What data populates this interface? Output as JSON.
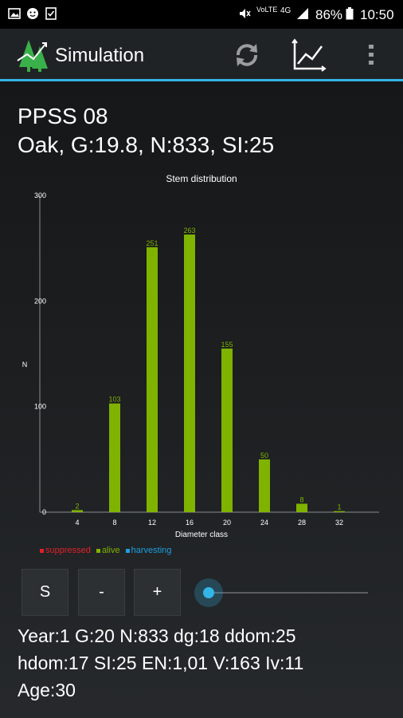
{
  "status_bar": {
    "battery_percent": "86%",
    "time": "10:50",
    "network": "4G",
    "volte": "VoLTE",
    "icons": [
      "image-icon",
      "face-icon",
      "checkbox-icon",
      "mute-icon",
      "signal-icon",
      "battery-icon"
    ]
  },
  "app_bar": {
    "title": "Simulation",
    "icons": [
      "tree-logo-icon",
      "refresh-icon",
      "chart-icon",
      "overflow-menu-icon"
    ]
  },
  "header": {
    "plot_name": "PPSS 08",
    "stand_info": "Oak, G:19.8, N:833, SI:25"
  },
  "chart_data": {
    "type": "bar",
    "title": "Stem distribution",
    "xlabel": "Diameter class",
    "ylabel": "N",
    "ylim": [
      0,
      300
    ],
    "y_ticks": [
      "0",
      "100",
      "200",
      "300"
    ],
    "categories": [
      "4",
      "8",
      "12",
      "16",
      "20",
      "24",
      "28",
      "32"
    ],
    "series": [
      {
        "name": "alive",
        "color": "#7fb300",
        "values": [
          2,
          103,
          251,
          263,
          155,
          50,
          8,
          1
        ]
      }
    ],
    "legend": [
      {
        "label": "suppressed",
        "color": "#e0202a"
      },
      {
        "label": "alive",
        "color": "#7fb300"
      },
      {
        "label": "harvesting",
        "color": "#1e9fe0"
      }
    ]
  },
  "controls": {
    "s_label": "S",
    "minus_label": "-",
    "plus_label": "+",
    "slider_value": 0
  },
  "stats": {
    "line1": "Year:1  G:20  N:833  dg:18  ddom:25",
    "line2": "hdom:17  SI:25  EN:1,01  V:163  Iv:11",
    "line3": "Age:30"
  }
}
